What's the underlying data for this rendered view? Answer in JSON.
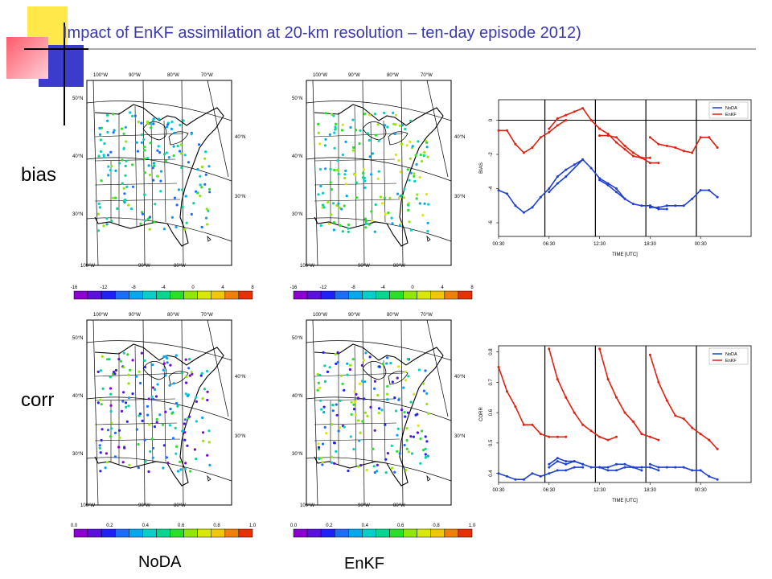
{
  "title": "Impact of  EnKF assimilation at 20-km resolution – ten-day episode 2012)",
  "row_labels": {
    "bias": "bias",
    "corr": "corr"
  },
  "col_labels": {
    "noda": "NoDA",
    "enkf": "EnKF"
  },
  "maps": {
    "lon_top": [
      "100°W",
      "90°W",
      "80°W",
      "70°W"
    ],
    "lon_bottom": [
      "100°W",
      "90°W",
      "80°W"
    ],
    "lat_left": [
      "50°N",
      "40°N",
      "30°N"
    ],
    "lat_right": [
      "40°N",
      "30°N"
    ]
  },
  "colorbars": {
    "bias_ticks": [
      "-16",
      "-12",
      "-8",
      "-4",
      "0",
      "4",
      "8"
    ],
    "corr_ticks": [
      "0.0",
      "0.2",
      "0.4",
      "0.6",
      "0.8",
      "1.0"
    ],
    "colors": [
      "#8a00d4",
      "#5b0fe0",
      "#2020ff",
      "#1e6cff",
      "#00a8f0",
      "#00d0c8",
      "#00d890",
      "#28e028",
      "#90e800",
      "#d8e800",
      "#f0c800",
      "#f08000",
      "#e83000"
    ]
  },
  "chart_data": [
    {
      "type": "line",
      "xlabel": "TIME [UTC]",
      "ylabel": "BIAS",
      "xlim": [
        0,
        30
      ],
      "ylim": [
        -6.8,
        1.2
      ],
      "x_ticks": [
        0,
        6,
        12,
        18,
        24
      ],
      "x_tick_labels": [
        "00:30",
        "06:30",
        "12:30",
        "18:30",
        "00:30"
      ],
      "y_ticks": [
        -6,
        -4,
        -2,
        0
      ],
      "y_tick_labels": [
        "-6",
        "-4",
        "-2",
        "0"
      ],
      "hline": 0,
      "vlines": [
        5.5,
        11.5,
        17.5,
        23.5
      ],
      "legend_position": "top-right",
      "series": [
        {
          "name": "NoDA",
          "color": "#1f3fd0",
          "segments": [
            [
              [
                0,
                -4.1
              ],
              [
                1,
                -4.3
              ],
              [
                2,
                -5.0
              ],
              [
                3,
                -5.4
              ],
              [
                4,
                -5.1
              ],
              [
                5,
                -4.5
              ],
              [
                6,
                -4.0
              ],
              [
                7,
                -3.3
              ],
              [
                8,
                -2.9
              ],
              [
                9,
                -2.6
              ],
              [
                10,
                -2.3
              ]
            ],
            [
              [
                6,
                -4.2
              ],
              [
                7,
                -3.7
              ],
              [
                8,
                -3.3
              ],
              [
                10,
                -2.3
              ],
              [
                11,
                -2.8
              ],
              [
                12,
                -3.4
              ],
              [
                13,
                -3.7
              ],
              [
                14,
                -4.0
              ],
              [
                15,
                -4.6
              ]
            ],
            [
              [
                12,
                -3.5
              ],
              [
                13,
                -3.8
              ],
              [
                14,
                -4.2
              ],
              [
                15,
                -4.6
              ],
              [
                16,
                -4.9
              ],
              [
                17,
                -5.0
              ],
              [
                18,
                -5.0
              ]
            ],
            [
              [
                18,
                -5.1
              ],
              [
                19,
                -5.1
              ],
              [
                20,
                -5.0
              ],
              [
                21,
                -5.0
              ],
              [
                22,
                -5.0
              ],
              [
                23,
                -4.6
              ],
              [
                24,
                -4.1
              ],
              [
                25,
                -4.1
              ],
              [
                26,
                -4.5
              ]
            ],
            [
              [
                18,
                -5.0
              ],
              [
                19,
                -5.2
              ],
              [
                20,
                -5.2
              ]
            ]
          ]
        },
        {
          "name": "EnKF",
          "color": "#e02010",
          "segments": [
            [
              [
                0,
                -0.6
              ],
              [
                1,
                -0.6
              ],
              [
                2,
                -1.4
              ],
              [
                3,
                -1.9
              ],
              [
                4,
                -1.6
              ],
              [
                5,
                -1.0
              ],
              [
                6,
                -0.7
              ],
              [
                7,
                -0.3
              ],
              [
                8,
                0.0
              ]
            ],
            [
              [
                6,
                -0.5
              ],
              [
                7,
                0.1
              ],
              [
                8,
                0.3
              ],
              [
                9,
                0.5
              ],
              [
                10,
                0.7
              ],
              [
                11,
                0.0
              ],
              [
                12,
                -0.5
              ],
              [
                13,
                -0.8
              ],
              [
                14,
                -1.3
              ],
              [
                15,
                -1.7
              ],
              [
                16,
                -2.1
              ],
              [
                17,
                -2.2
              ],
              [
                18,
                -2.2
              ]
            ],
            [
              [
                12,
                -0.9
              ],
              [
                13,
                -0.9
              ],
              [
                14,
                -1.0
              ],
              [
                15,
                -1.5
              ],
              [
                16,
                -1.9
              ],
              [
                17,
                -2.2
              ],
              [
                18,
                -2.5
              ],
              [
                19,
                -2.5
              ]
            ],
            [
              [
                18,
                -1.0
              ],
              [
                19,
                -1.4
              ],
              [
                20,
                -1.5
              ],
              [
                21,
                -1.6
              ],
              [
                22,
                -1.8
              ],
              [
                23,
                -1.9
              ],
              [
                24,
                -1.0
              ],
              [
                25,
                -1.0
              ],
              [
                26,
                -1.6
              ]
            ]
          ]
        }
      ]
    },
    {
      "type": "line",
      "xlabel": "TIME [UTC]",
      "ylabel": "CORR",
      "xlim": [
        0,
        30
      ],
      "ylim": [
        0.37,
        0.82
      ],
      "x_ticks": [
        0,
        6,
        12,
        18,
        24
      ],
      "x_tick_labels": [
        "00:30",
        "06:30",
        "12:30",
        "18:30",
        "00:30"
      ],
      "y_ticks": [
        0.4,
        0.5,
        0.6,
        0.7,
        0.8
      ],
      "y_tick_labels": [
        "0.4",
        "0.5",
        "0.6",
        "0.7",
        "0.8"
      ],
      "vlines": [
        5.5,
        11.5,
        17.5,
        23.5
      ],
      "legend_position": "top-right",
      "series": [
        {
          "name": "NoDA",
          "color": "#1f3fd0",
          "segments": [
            [
              [
                0,
                0.4
              ],
              [
                1,
                0.39
              ],
              [
                2,
                0.38
              ],
              [
                3,
                0.38
              ],
              [
                4,
                0.4
              ],
              [
                5,
                0.39
              ],
              [
                6,
                0.4
              ],
              [
                7,
                0.41
              ],
              [
                8,
                0.41
              ],
              [
                9,
                0.42
              ],
              [
                10,
                0.42
              ]
            ],
            [
              [
                6,
                0.42
              ],
              [
                7,
                0.44
              ],
              [
                8,
                0.43
              ],
              [
                9,
                0.44
              ],
              [
                10,
                0.43
              ],
              [
                11,
                0.42
              ],
              [
                12,
                0.42
              ],
              [
                13,
                0.41
              ],
              [
                14,
                0.41
              ],
              [
                15,
                0.42
              ],
              [
                16,
                0.42
              ],
              [
                17,
                0.41
              ]
            ],
            [
              [
                6,
                0.43
              ],
              [
                7,
                0.45
              ],
              [
                8,
                0.44
              ],
              [
                9,
                0.44
              ],
              [
                10,
                0.43
              ]
            ],
            [
              [
                12,
                0.42
              ],
              [
                13,
                0.42
              ],
              [
                14,
                0.43
              ],
              [
                15,
                0.43
              ],
              [
                16,
                0.42
              ],
              [
                17,
                0.42
              ],
              [
                18,
                0.42
              ],
              [
                19,
                0.41
              ]
            ],
            [
              [
                18,
                0.43
              ],
              [
                19,
                0.42
              ],
              [
                20,
                0.42
              ],
              [
                21,
                0.42
              ],
              [
                22,
                0.42
              ],
              [
                23,
                0.41
              ],
              [
                24,
                0.41
              ],
              [
                25,
                0.39
              ],
              [
                26,
                0.38
              ]
            ]
          ]
        },
        {
          "name": "EnKF",
          "color": "#e02010",
          "segments": [
            [
              [
                0,
                0.75
              ],
              [
                1,
                0.67
              ],
              [
                2,
                0.62
              ],
              [
                3,
                0.56
              ],
              [
                4,
                0.56
              ],
              [
                5,
                0.53
              ],
              [
                6,
                0.52
              ],
              [
                7,
                0.52
              ],
              [
                8,
                0.52
              ]
            ],
            [
              [
                6,
                0.81
              ],
              [
                7,
                0.71
              ],
              [
                8,
                0.65
              ],
              [
                9,
                0.6
              ],
              [
                10,
                0.56
              ],
              [
                11,
                0.54
              ],
              [
                12,
                0.52
              ],
              [
                13,
                0.51
              ],
              [
                14,
                0.52
              ]
            ],
            [
              [
                12,
                0.81
              ],
              [
                13,
                0.71
              ],
              [
                14,
                0.65
              ],
              [
                15,
                0.6
              ],
              [
                16,
                0.57
              ],
              [
                17,
                0.53
              ],
              [
                18,
                0.52
              ],
              [
                19,
                0.51
              ]
            ],
            [
              [
                18,
                0.79
              ],
              [
                19,
                0.7
              ],
              [
                20,
                0.64
              ],
              [
                21,
                0.59
              ],
              [
                22,
                0.58
              ],
              [
                23,
                0.55
              ],
              [
                24,
                0.53
              ],
              [
                25,
                0.51
              ],
              [
                26,
                0.48
              ]
            ]
          ]
        }
      ]
    }
  ]
}
